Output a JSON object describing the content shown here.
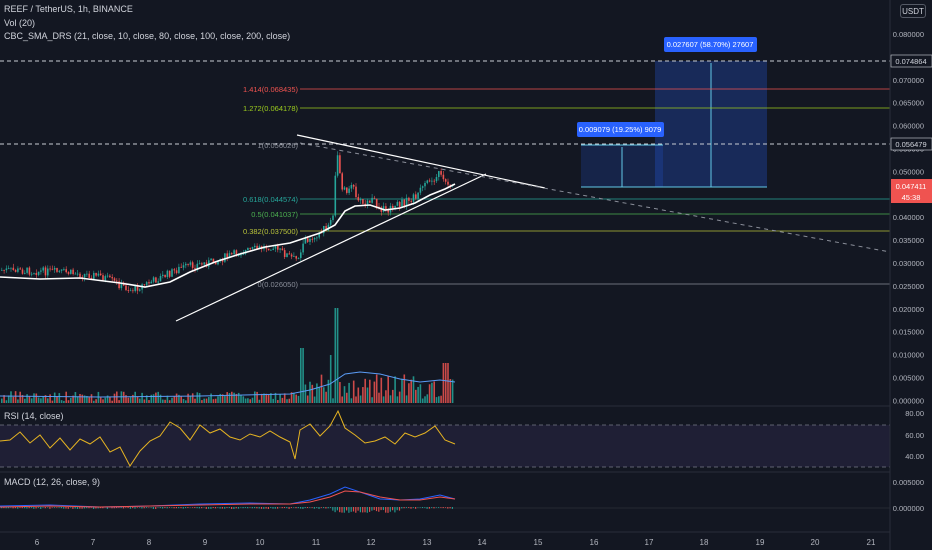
{
  "header": {
    "symbol_line": "REEF / TetherUS, 1h, BINANCE",
    "vol_line": "Vol (20)",
    "sma_line": "CBC_SMA_DRS (21, close, 10, close, 80, close, 100, close, 200, close)",
    "currency": "USDT"
  },
  "price_axis": {
    "labels": [
      "0.080000",
      "0.075000",
      "0.070000",
      "0.065000",
      "0.060000",
      "0.055000",
      "0.050000",
      "0.045000",
      "0.040000",
      "0.035000",
      "0.030000",
      "0.025000",
      "0.020000",
      "0.015000",
      "0.010000",
      "0.005000",
      "0.000000"
    ],
    "tag_top": "0.074864",
    "tag_mid": "0.056479",
    "tag_price": "0.047411",
    "tag_time": "45:38"
  },
  "fib_labels": {
    "f1414": "1.414(0.068435)",
    "f1272": "1.272(0.064178)",
    "f1": "1(0.056026)",
    "f0618": "0.618(0.044574)",
    "f05": "0.5(0.041037)",
    "f0382": "0.382(0.037500)",
    "f0": "0(0.026050)"
  },
  "measures": {
    "m1": "0.009079 (19.25%) 9079",
    "m2": "0.027607 (58.70%) 27607"
  },
  "rsi": {
    "label": "RSI (14, close)",
    "axis": [
      "80.00",
      "60.00",
      "40.00"
    ]
  },
  "macd": {
    "label": "MACD (12, 26, close, 9)",
    "axis": [
      "0.005000",
      "0.000000"
    ]
  },
  "time_axis": [
    "6",
    "7",
    "8",
    "9",
    "10",
    "11",
    "12",
    "13",
    "14",
    "15",
    "16",
    "17",
    "18",
    "19",
    "20",
    "21"
  ],
  "colors": {
    "up": "#26a69a",
    "down": "#ef5350",
    "bg": "#131722",
    "sma": "#ffffff"
  }
}
